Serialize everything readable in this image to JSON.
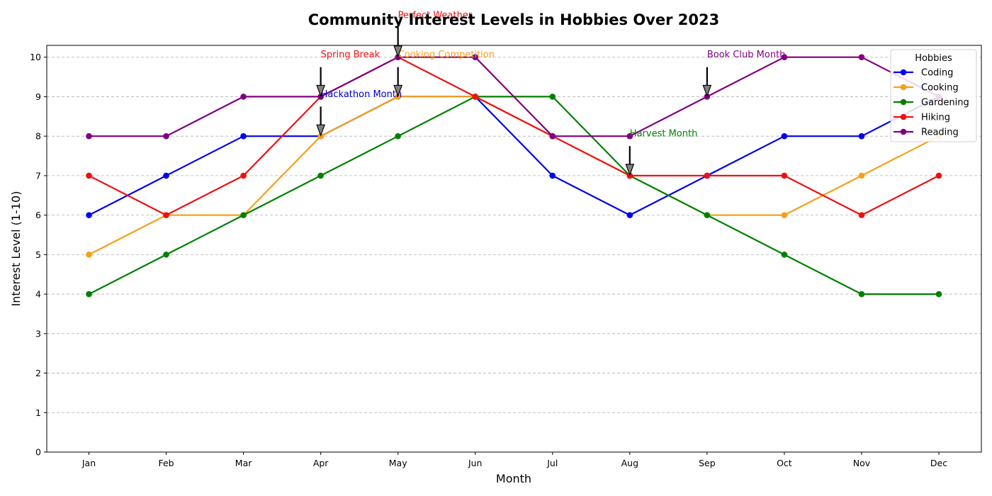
{
  "chart_data": {
    "type": "line",
    "title": "Community Interest Levels in Hobbies Over 2023",
    "xlabel": "Month",
    "ylabel": "Interest Level (1-10)",
    "categories": [
      "Jan",
      "Feb",
      "Mar",
      "Apr",
      "May",
      "Jun",
      "Jul",
      "Aug",
      "Sep",
      "Oct",
      "Nov",
      "Dec"
    ],
    "ylim": [
      0,
      10.3
    ],
    "yticks": [
      "0",
      "1",
      "2",
      "3",
      "4",
      "5",
      "6",
      "7",
      "8",
      "9",
      "10"
    ],
    "grid": true,
    "legend": {
      "title": "Hobbies",
      "placement": "top-right"
    },
    "series": [
      {
        "name": "Coding",
        "color": "#0000ee",
        "values": [
          6,
          7,
          8,
          8,
          9,
          9,
          7,
          6,
          7,
          8,
          8,
          9
        ]
      },
      {
        "name": "Cooking",
        "color": "#f5a01a",
        "values": [
          5,
          6,
          6,
          8,
          9,
          9,
          8,
          7,
          6,
          6,
          7,
          8
        ]
      },
      {
        "name": "Gardening",
        "color": "#008000",
        "values": [
          4,
          5,
          6,
          7,
          8,
          9,
          9,
          7,
          6,
          5,
          4,
          4
        ]
      },
      {
        "name": "Hiking",
        "color": "#ee1111",
        "values": [
          7,
          6,
          7,
          9,
          10,
          9,
          8,
          7,
          7,
          7,
          6,
          7
        ]
      },
      {
        "name": "Reading",
        "color": "#7f007f",
        "values": [
          8,
          8,
          9,
          9,
          10,
          10,
          8,
          8,
          9,
          10,
          10,
          9
        ]
      }
    ],
    "annotations": [
      {
        "text": "Hackathon Month",
        "series": "Coding",
        "x": "Apr",
        "y": 8,
        "color": "#0000cc"
      },
      {
        "text": "Cooking Competition",
        "series": "Cooking",
        "x": "May",
        "y": 9,
        "color": "#f5a01a"
      },
      {
        "text": "Harvest Month",
        "series": "Gardening",
        "x": "Aug",
        "y": 7,
        "color": "#008000"
      },
      {
        "text": "Spring Break",
        "series": "Hiking",
        "x": "Apr",
        "y": 9,
        "color": "#ee1111"
      },
      {
        "text": "Perfect Weather",
        "series": "Hiking",
        "x": "May",
        "y": 10,
        "color": "#ee1111"
      },
      {
        "text": "Book Club Month",
        "series": "Reading",
        "x": "Sep",
        "y": 9,
        "color": "#7f007f"
      }
    ]
  }
}
